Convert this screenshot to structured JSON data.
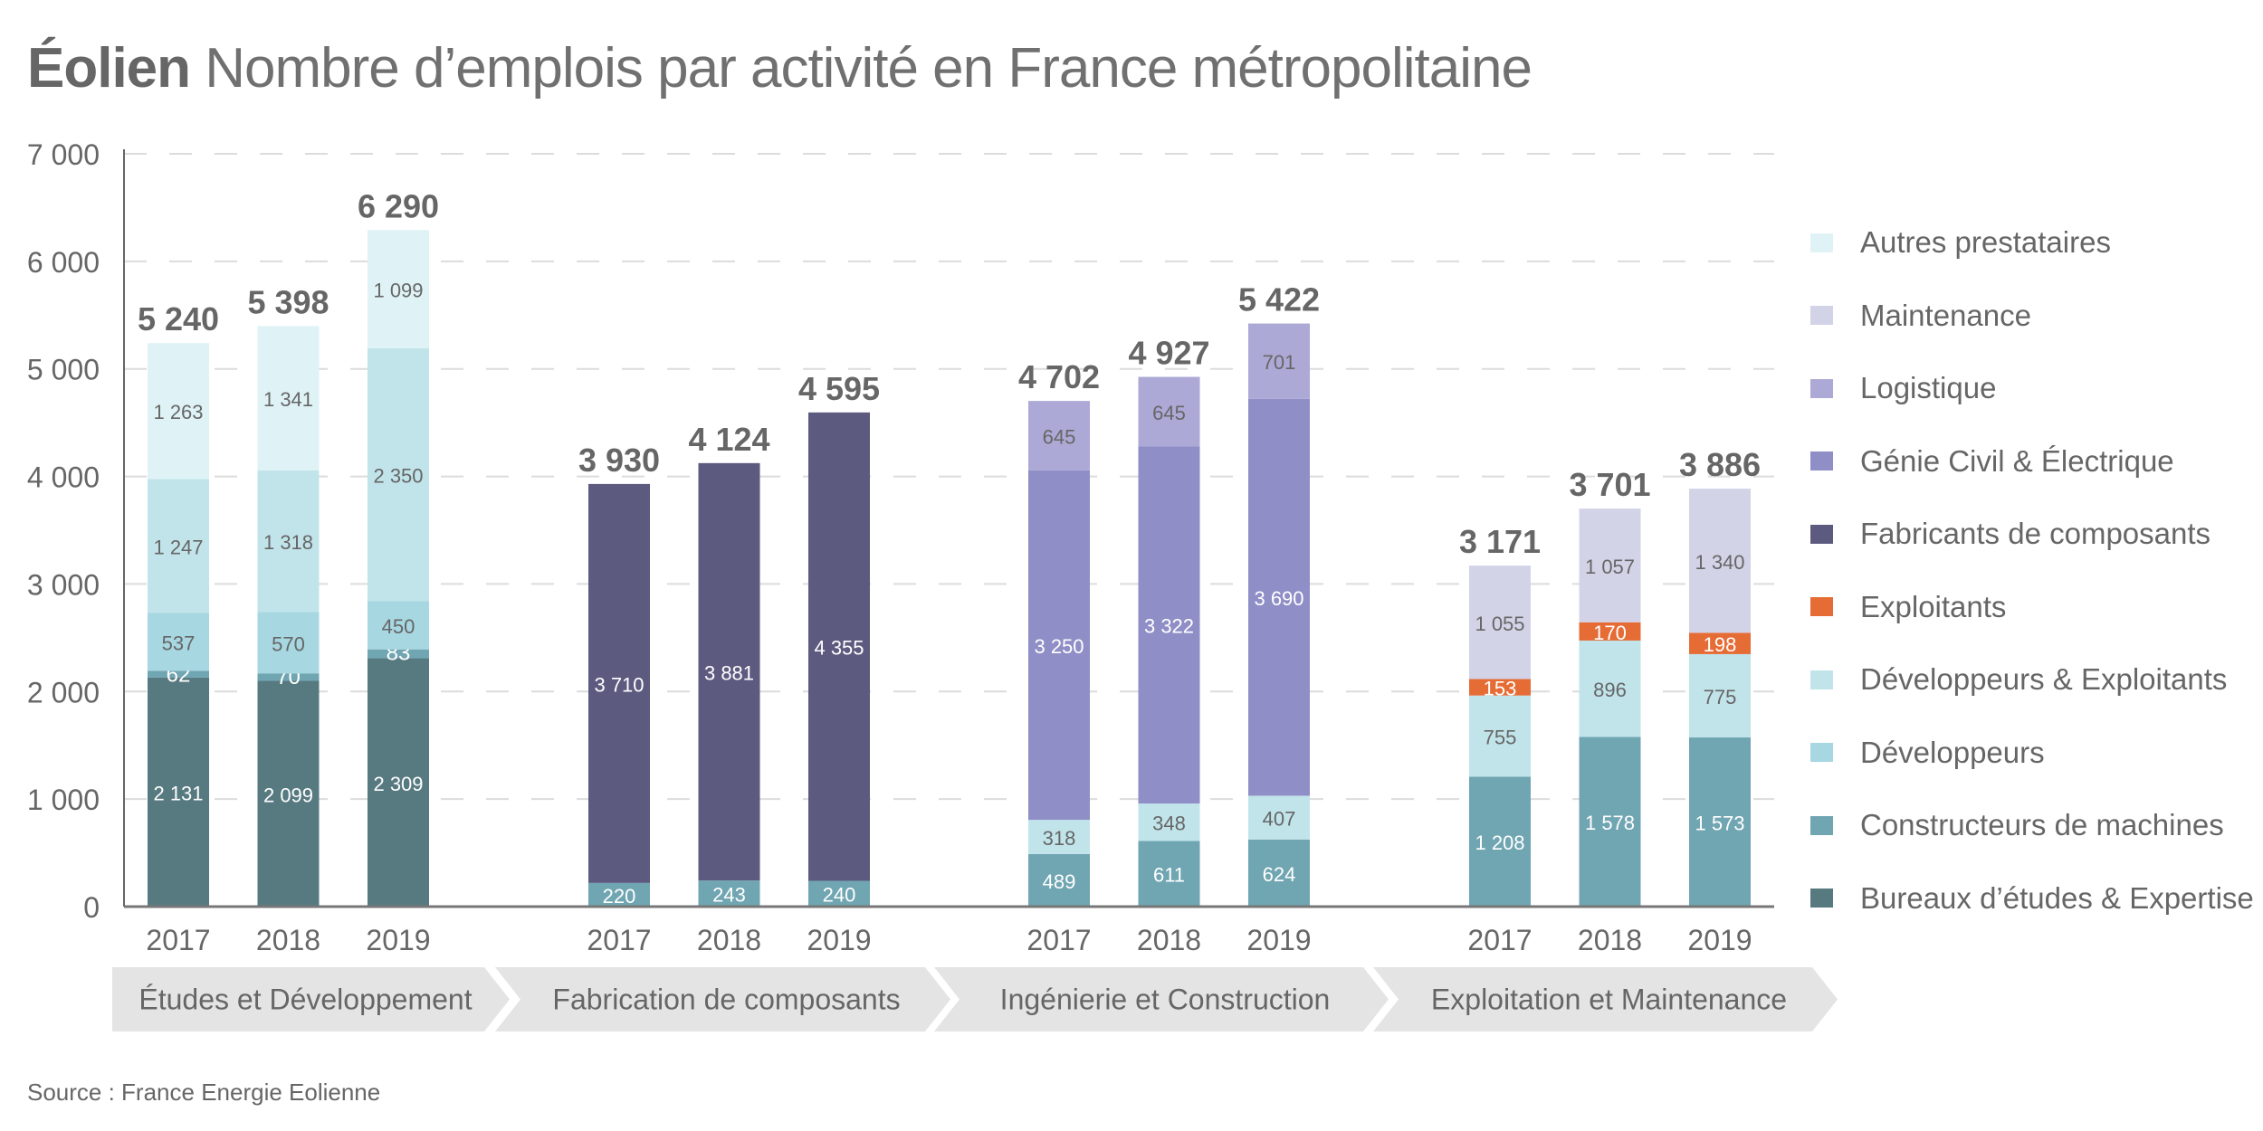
{
  "title": {
    "bold": "Éolien",
    "rest": "Nombre d’emplois par activité en France métropolitaine"
  },
  "source": "Source : France Energie Eolienne",
  "chart_data": {
    "type": "bar",
    "stacked": true,
    "title": "Éolien Nombre d’emplois par activité en France métropolitaine",
    "xlabel": "",
    "ylabel": "",
    "ylim": [
      0,
      7000
    ],
    "yticks": [
      0,
      1000,
      2000,
      3000,
      4000,
      5000,
      6000,
      7000
    ],
    "ytick_labels": [
      "0",
      "1 000",
      "2 000",
      "3 000",
      "4 000",
      "5 000",
      "6 000",
      "7 000"
    ],
    "grid": true,
    "legend_position": "right",
    "groups": [
      {
        "label": "Études et Développement",
        "years": [
          "2017",
          "2018",
          "2019"
        ],
        "totals": [
          "5 240",
          "5 398",
          "6 290"
        ]
      },
      {
        "label": "Fabrication de composants",
        "years": [
          "2017",
          "2018",
          "2019"
        ],
        "totals": [
          "3 930",
          "4 124",
          "4 595"
        ]
      },
      {
        "label": "Ingénierie et Construction",
        "years": [
          "2017",
          "2018",
          "2019"
        ],
        "totals": [
          "4 702",
          "4 927",
          "5 422"
        ]
      },
      {
        "label": "Exploitation et Maintenance",
        "years": [
          "2017",
          "2018",
          "2019"
        ],
        "totals": [
          "3 171",
          "3 701",
          "3 886"
        ]
      }
    ],
    "series": [
      {
        "name": "Bureaux d’études & Expertise",
        "color": "#577a80",
        "label_color": "#ffffff",
        "values": [
          [
            2131,
            2099,
            2309
          ],
          [
            0,
            0,
            0
          ],
          [
            0,
            0,
            0
          ],
          [
            0,
            0,
            0
          ]
        ]
      },
      {
        "name": "Constructeurs de machines",
        "color": "#70a5b2",
        "label_color": "#ffffff",
        "values": [
          [
            62,
            70,
            83
          ],
          [
            220,
            243,
            240
          ],
          [
            489,
            611,
            624
          ],
          [
            1208,
            1578,
            1573
          ]
        ]
      },
      {
        "name": "Développeurs",
        "color": "#a7d7e1",
        "label_color": "#666666",
        "values": [
          [
            537,
            570,
            450
          ],
          [
            0,
            0,
            0
          ],
          [
            0,
            0,
            0
          ],
          [
            0,
            0,
            0
          ]
        ]
      },
      {
        "name": "Développeurs & Exploitants",
        "color": "#c1e4ea",
        "label_color": "#666666",
        "values": [
          [
            1247,
            1318,
            2350
          ],
          [
            0,
            0,
            0
          ],
          [
            318,
            348,
            407
          ],
          [
            755,
            896,
            775
          ]
        ]
      },
      {
        "name": "Exploitants",
        "color": "#e66c35",
        "label_color": "#ffffff",
        "values": [
          [
            0,
            0,
            0
          ],
          [
            0,
            0,
            0
          ],
          [
            0,
            0,
            0
          ],
          [
            153,
            170,
            198
          ]
        ]
      },
      {
        "name": "Fabricants de composants",
        "color": "#5d5a80",
        "label_color": "#ffffff",
        "values": [
          [
            0,
            0,
            0
          ],
          [
            3710,
            3881,
            4355
          ],
          [
            0,
            0,
            0
          ],
          [
            0,
            0,
            0
          ]
        ]
      },
      {
        "name": "Génie Civil & Électrique",
        "color": "#8f8ec6",
        "label_color": "#ffffff",
        "values": [
          [
            0,
            0,
            0
          ],
          [
            0,
            0,
            0
          ],
          [
            3250,
            3322,
            3690
          ],
          [
            0,
            0,
            0
          ]
        ]
      },
      {
        "name": "Logistique",
        "color": "#aca9d6",
        "label_color": "#666666",
        "values": [
          [
            0,
            0,
            0
          ],
          [
            0,
            0,
            0
          ],
          [
            645,
            645,
            701
          ],
          [
            0,
            0,
            0
          ]
        ]
      },
      {
        "name": "Maintenance",
        "color": "#d3d3e8",
        "label_color": "#666666",
        "values": [
          [
            0,
            0,
            0
          ],
          [
            0,
            0,
            0
          ],
          [
            0,
            0,
            0
          ],
          [
            1055,
            1057,
            1340
          ]
        ]
      },
      {
        "name": "Autres prestataires",
        "color": "#dff3f6",
        "label_color": "#666666",
        "values": [
          [
            1263,
            1341,
            1099
          ],
          [
            0,
            0,
            0
          ],
          [
            0,
            0,
            0
          ],
          [
            0,
            0,
            0
          ]
        ]
      }
    ],
    "legend_order": [
      "Autres prestataires",
      "Maintenance",
      "Logistique",
      "Génie Civil & Électrique",
      "Fabricants de composants",
      "Exploitants",
      "Développeurs & Exploitants",
      "Développeurs",
      "Constructeurs de machines",
      "Bureaux d’études & Expertise"
    ]
  }
}
